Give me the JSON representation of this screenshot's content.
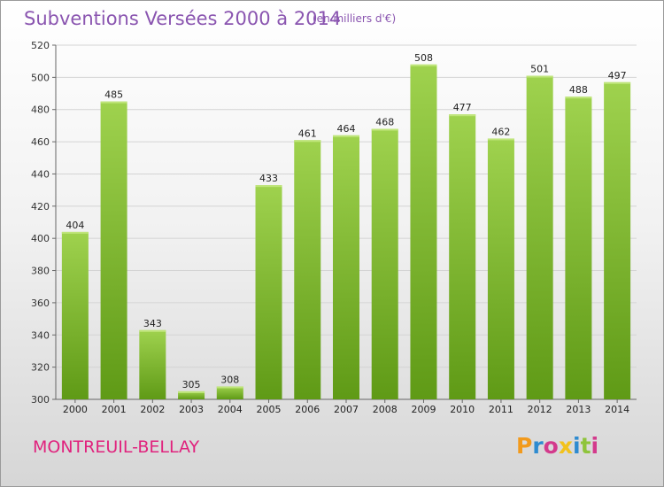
{
  "header": {
    "title": "Subventions Versées 2000 à 2014",
    "subtitle": "(en milliers d'€)"
  },
  "footer": {
    "place": "MONTREUIL-BELLAY",
    "logo": "Proxiti"
  },
  "colors": {
    "bar_top": "#9fd24e",
    "bar_bottom": "#5f9a16",
    "title": "#8a55b0",
    "place": "#e0227d"
  },
  "chart_data": {
    "type": "bar",
    "categories": [
      "2000",
      "2001",
      "2002",
      "2003",
      "2004",
      "2005",
      "2006",
      "2007",
      "2008",
      "2009",
      "2010",
      "2011",
      "2012",
      "2013",
      "2014"
    ],
    "values": [
      404,
      485,
      343,
      305,
      308,
      433,
      461,
      464,
      468,
      508,
      477,
      462,
      501,
      488,
      497
    ],
    "title": "Subventions Versées 2000 à 2014",
    "ylabel": "",
    "xlabel": "",
    "ylim": [
      300,
      520
    ],
    "yticks": [
      300,
      320,
      340,
      360,
      380,
      400,
      420,
      440,
      460,
      480,
      500,
      520
    ],
    "grid": true,
    "data_labels": true
  }
}
